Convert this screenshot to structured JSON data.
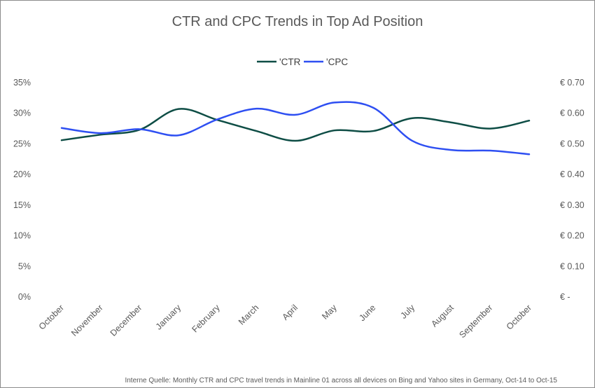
{
  "chart_data": {
    "type": "line",
    "title": "CTR and CPC Trends in Top Ad Position",
    "categories": [
      "October",
      "November",
      "December",
      "January",
      "February",
      "March",
      "April",
      "May",
      "June",
      "July",
      "August",
      "September",
      "October"
    ],
    "series": [
      {
        "name": "'CTR",
        "axis": "left",
        "color": "#0e4d45",
        "values": [
          25.6,
          26.5,
          27.3,
          30.7,
          28.9,
          27.1,
          25.5,
          27.2,
          27.1,
          29.2,
          28.5,
          27.5,
          28.8
        ]
      },
      {
        "name": "'CPC",
        "axis": "right",
        "color": "#2e4ff2",
        "values": [
          0.552,
          0.535,
          0.548,
          0.528,
          0.58,
          0.615,
          0.595,
          0.635,
          0.618,
          0.51,
          0.48,
          0.478,
          0.466
        ]
      }
    ],
    "y_left": {
      "min": 0,
      "max": 35,
      "ticks": [
        0,
        5,
        10,
        15,
        20,
        25,
        30,
        35
      ],
      "tick_labels": [
        "0%",
        "5%",
        "10%",
        "15%",
        "20%",
        "25%",
        "30%",
        "35%"
      ]
    },
    "y_right": {
      "min": 0,
      "max": 0.7,
      "ticks": [
        0,
        0.1,
        0.2,
        0.3,
        0.4,
        0.5,
        0.6,
        0.7
      ],
      "tick_labels": [
        "€ -",
        "€ 0.10",
        "€ 0.20",
        "€ 0.30",
        "€ 0.40",
        "€ 0.50",
        "€ 0.60",
        "€ 0.70"
      ]
    },
    "grid": false,
    "legend": "top-center",
    "footnote": "Interne Quelle: Monthly CTR and CPC travel trends in Mainline 01 across all devices on Bing and Yahoo sites in Germany,  Oct-14 to Oct-15"
  }
}
